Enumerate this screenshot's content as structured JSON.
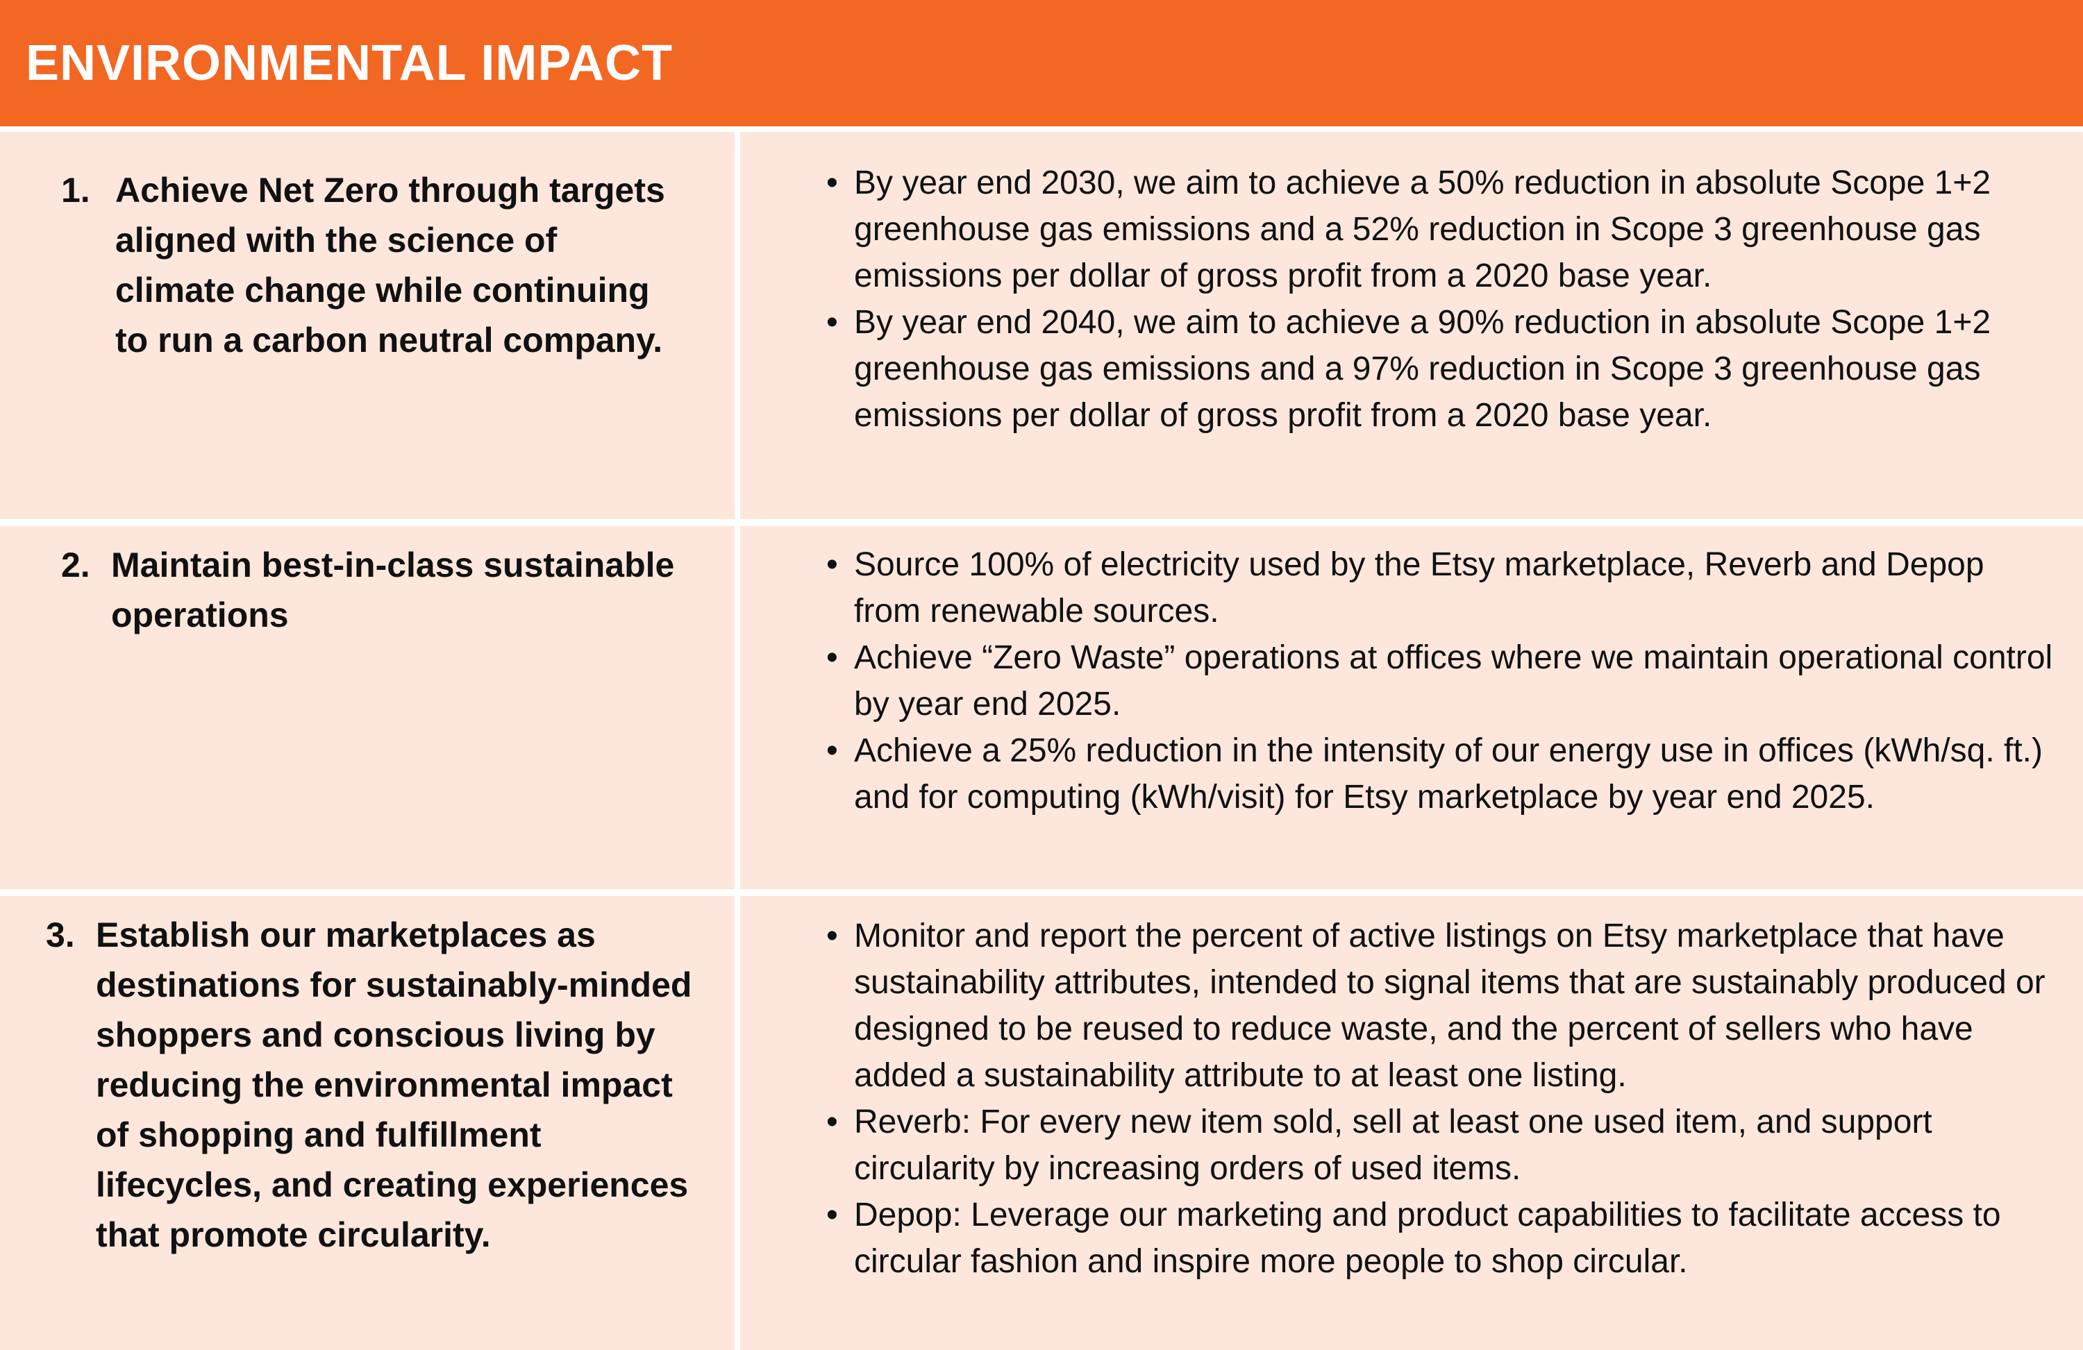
{
  "header": {
    "title": "ENVIRONMENTAL IMPACT"
  },
  "colors": {
    "header_background": "#f26722",
    "row_background": "#fde7dd",
    "divider": "#ffffff",
    "text": "#111111"
  },
  "bullet_glyph": "•",
  "rows": [
    {
      "number": "1.",
      "goal": "Achieve Net Zero through targets aligned with the science of climate change while continuing to run a carbon neutral company.",
      "bullets": [
        "By year end 2030, we aim to achieve a 50% reduction in absolute Scope 1+2 greenhouse gas emissions and a 52% reduction in Scope 3 greenhouse gas emissions per dollar of gross profit from a 2020 base year.",
        "By year end 2040, we aim to achieve a 90% reduction in absolute Scope 1+2 greenhouse gas emissions and a 97% reduction in Scope 3 greenhouse gas emissions per dollar of gross profit from a 2020 base year."
      ]
    },
    {
      "number": "2.",
      "goal": "Maintain best-in-class sustainable operations",
      "bullets": [
        "Source 100% of electricity used by the Etsy marketplace, Reverb and Depop from renewable sources.",
        "Achieve “Zero Waste” operations at offices where we maintain operational control by year end 2025.",
        "Achieve a 25% reduction in the intensity of our energy use in offices (kWh/sq. ft.) and for computing (kWh/visit) for Etsy marketplace by year end 2025."
      ]
    },
    {
      "number": "3.",
      "goal": "Establish our marketplaces as destinations for sustainably-minded shoppers and conscious living by reducing the environmental impact of shopping and fulfillment lifecycles, and creating experiences that promote circularity.",
      "bullets": [
        "Monitor and report the percent of active listings on Etsy marketplace that have sustainability attributes, intended to signal items that are sustainably produced or designed to be reused to reduce waste, and the percent of sellers who have added a sustainability attribute to at least one listing.",
        "Reverb: For every new item sold, sell at least one used item, and support circularity by increasing orders of used items.",
        "Depop: Leverage our marketing and product capabilities to facilitate access to circular fashion and inspire more people to shop circular."
      ]
    }
  ]
}
